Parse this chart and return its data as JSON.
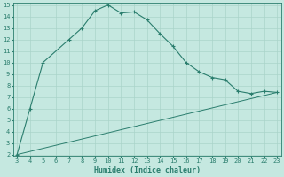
{
  "xlabel": "Humidex (Indice chaleur)",
  "curve1_x": [
    3,
    4,
    5,
    7,
    8,
    9,
    10,
    11,
    12,
    13,
    14,
    15,
    16,
    17,
    18,
    19,
    20,
    21,
    22,
    23
  ],
  "curve1_y": [
    2,
    6,
    10,
    12,
    13,
    14.5,
    15,
    14.3,
    14.4,
    13.7,
    12.5,
    11.4,
    10,
    9.2,
    8.7,
    8.5,
    7.5,
    7.3,
    7.5,
    7.4
  ],
  "curve2_x": [
    3,
    23
  ],
  "curve2_y": [
    2,
    7.4
  ],
  "line_color": "#2a7d6d",
  "bg_color": "#c5e8e0",
  "grid_color": "#aad4ca",
  "xlim_min": 3,
  "xlim_max": 23,
  "ylim_min": 2,
  "ylim_max": 15,
  "xticks": [
    3,
    4,
    5,
    6,
    7,
    8,
    9,
    10,
    11,
    12,
    13,
    14,
    15,
    16,
    17,
    18,
    19,
    20,
    21,
    22,
    23
  ],
  "yticks": [
    2,
    3,
    4,
    5,
    6,
    7,
    8,
    9,
    10,
    11,
    12,
    13,
    14,
    15
  ],
  "tick_fontsize": 5.0,
  "xlabel_fontsize": 6.0
}
